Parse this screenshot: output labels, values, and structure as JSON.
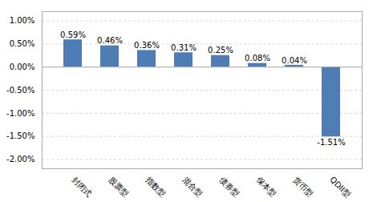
{
  "chart_data": {
    "type": "bar",
    "categories": [
      "封闭式",
      "股票型",
      "指数型",
      "混合型",
      "债券型",
      "保本型",
      "货币型",
      "QDII型"
    ],
    "values": [
      0.0059,
      0.0046,
      0.0036,
      0.0031,
      0.0025,
      0.0008,
      0.0004,
      -0.0151
    ],
    "value_labels": [
      "0.59%",
      "0.46%",
      "0.36%",
      "0.31%",
      "0.25%",
      "0.08%",
      "0.04%",
      "-1.51%"
    ],
    "color": "#4e7db5",
    "ylim": [
      -0.022,
      0.012
    ],
    "yticks": [
      {
        "value": -0.02,
        "label": "-2.00%"
      },
      {
        "value": -0.015,
        "label": "-1.50%"
      },
      {
        "value": -0.01,
        "label": "-1.00%"
      },
      {
        "value": -0.005,
        "label": "-0.50%"
      },
      {
        "value": 0.0,
        "label": "0.00%"
      },
      {
        "value": 0.005,
        "label": "0.50%"
      },
      {
        "value": 0.01,
        "label": "1.00%"
      }
    ],
    "grid": true,
    "data_labels": true
  }
}
